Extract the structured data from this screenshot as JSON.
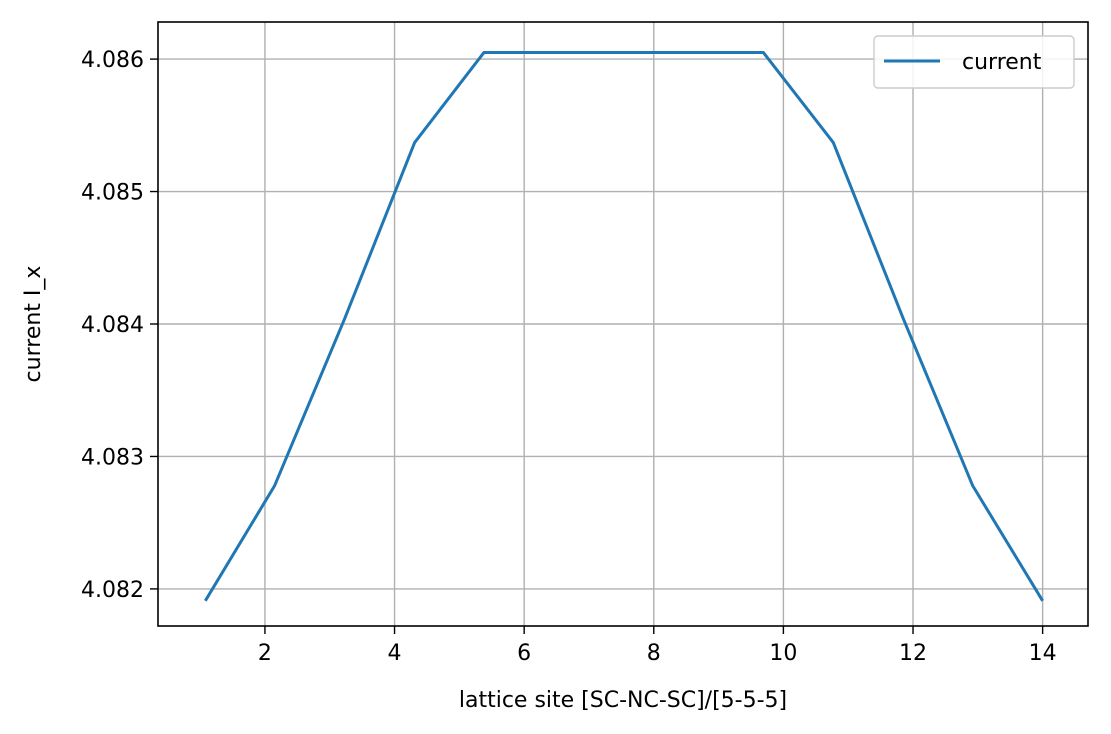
{
  "chart_data": {
    "type": "line",
    "title": "",
    "xlabel": "lattice site [SC-NC-SC]/[5-5-5]",
    "ylabel": "current I_x",
    "xlim": [
      0.35,
      14.7
    ],
    "ylim": [
      4.08172,
      4.08628
    ],
    "xticks": [
      2,
      4,
      6,
      8,
      10,
      12,
      14
    ],
    "yticks": [
      4.082,
      4.083,
      4.084,
      4.085,
      4.086
    ],
    "grid": true,
    "legend": {
      "position": "top-right"
    },
    "series": [
      {
        "name": "current",
        "color": "#1f77b4",
        "x": [
          1.08,
          2.15,
          3.23,
          4.31,
          5.38,
          6.46,
          7.54,
          8.62,
          9.69,
          10.77,
          11.85,
          12.92,
          14.0
        ],
        "y": [
          4.08191,
          4.08278,
          4.08404,
          4.08537,
          4.08605,
          4.08605,
          4.08605,
          4.08605,
          4.08605,
          4.08537,
          4.08404,
          4.08278,
          4.08191
        ]
      }
    ]
  }
}
